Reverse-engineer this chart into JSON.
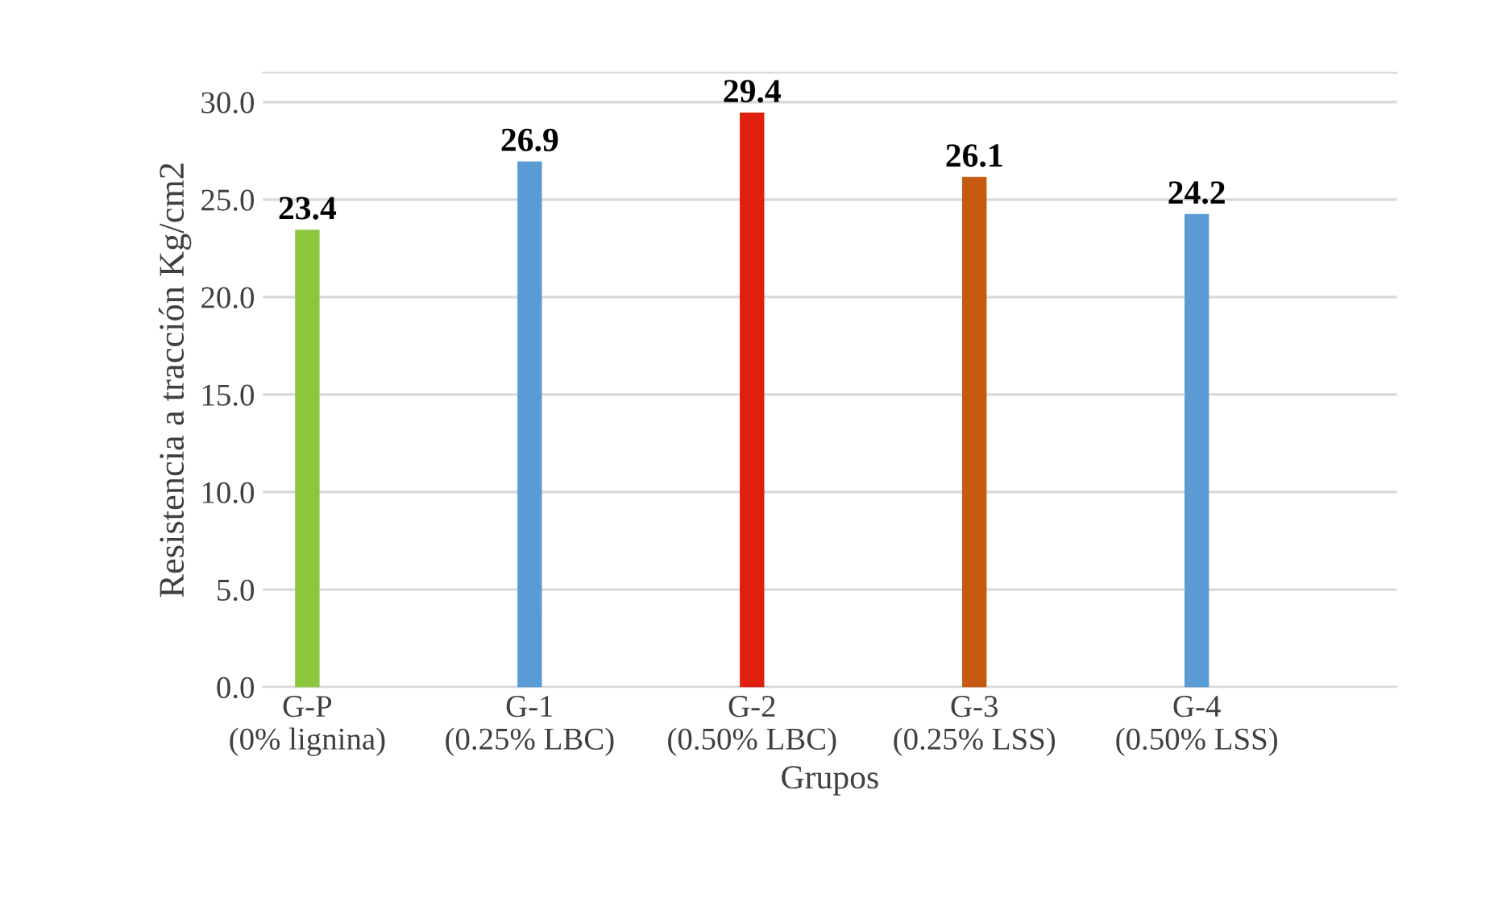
{
  "chart_data": {
    "type": "bar",
    "xlabel": "Grupos",
    "ylabel": "Resistencia a tracción Kg/cm2",
    "categories": [
      "G-P\n(0% lignina)",
      "G-1\n(0.25% LBC)",
      "G-2\n(0.50% LBC)",
      "G-3\n(0.25% LSS)",
      "G-4\n(0.50% LSS)"
    ],
    "values": [
      23.4,
      26.9,
      29.4,
      26.1,
      24.2
    ],
    "colors": [
      "#8cc63e",
      "#5b9bd5",
      "#e0200f",
      "#c55a11",
      "#5b9bd5"
    ],
    "ylim": [
      0,
      31.5
    ],
    "yticks": [
      {
        "value": 0,
        "label": "0.0"
      },
      {
        "value": 5,
        "label": "5.0"
      },
      {
        "value": 10,
        "label": "10.0"
      },
      {
        "value": 15,
        "label": "15.0"
      },
      {
        "value": 20,
        "label": "20.0"
      },
      {
        "value": 25,
        "label": "25.0"
      },
      {
        "value": 30,
        "label": "30.0"
      }
    ],
    "grid": "y",
    "data_labels": true
  }
}
